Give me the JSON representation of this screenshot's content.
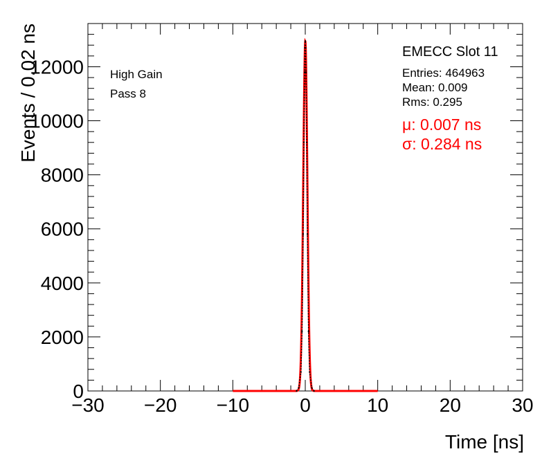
{
  "chart_data": {
    "type": "line",
    "title": "",
    "xlabel": "Time [ns]",
    "ylabel": "Events / 0.02 ns",
    "xlim": [
      -30,
      30
    ],
    "ylim": [
      0,
      13600
    ],
    "x_ticks": [
      -30,
      -20,
      -10,
      0,
      10,
      20,
      30
    ],
    "x_tick_labels": [
      "−30",
      "−20",
      "−10",
      "0",
      "10",
      "20",
      "30"
    ],
    "y_ticks": [
      0,
      2000,
      4000,
      6000,
      8000,
      10000,
      12000
    ],
    "y_tick_labels": [
      "0",
      "2000",
      "4000",
      "6000",
      "8000",
      "10000",
      "12000"
    ],
    "grid": false,
    "legend": "none",
    "series": [
      {
        "kind": "histogram",
        "color": "#000000",
        "x": [
          -1.2,
          -0.9,
          -0.6,
          -0.45,
          -0.3,
          -0.2,
          -0.1,
          -0.05,
          0.0,
          0.05,
          0.1,
          0.2,
          0.3,
          0.45,
          0.6,
          0.9,
          1.2
        ],
        "y": [
          0,
          120,
          700,
          2200,
          5800,
          9200,
          11800,
          12700,
          12950,
          12700,
          11800,
          9200,
          5800,
          2200,
          700,
          120,
          0
        ]
      },
      {
        "kind": "fit",
        "color": "#ff0000",
        "mu": 0.007,
        "sigma": 0.284,
        "amplitude": 12950,
        "range": [
          -10,
          10
        ]
      }
    ],
    "annotations": {
      "left": [
        "High Gain",
        "Pass 8"
      ],
      "stats_title": "EMECC Slot 11",
      "stats": [
        "Entries: 464963",
        "Mean: 0.009",
        "Rms: 0.295"
      ],
      "fit": [
        "μ: 0.007 ns",
        "σ: 0.284 ns"
      ]
    }
  },
  "colors": {
    "fit": "#ff0000",
    "hist": "#000000",
    "axis": "#000000"
  }
}
